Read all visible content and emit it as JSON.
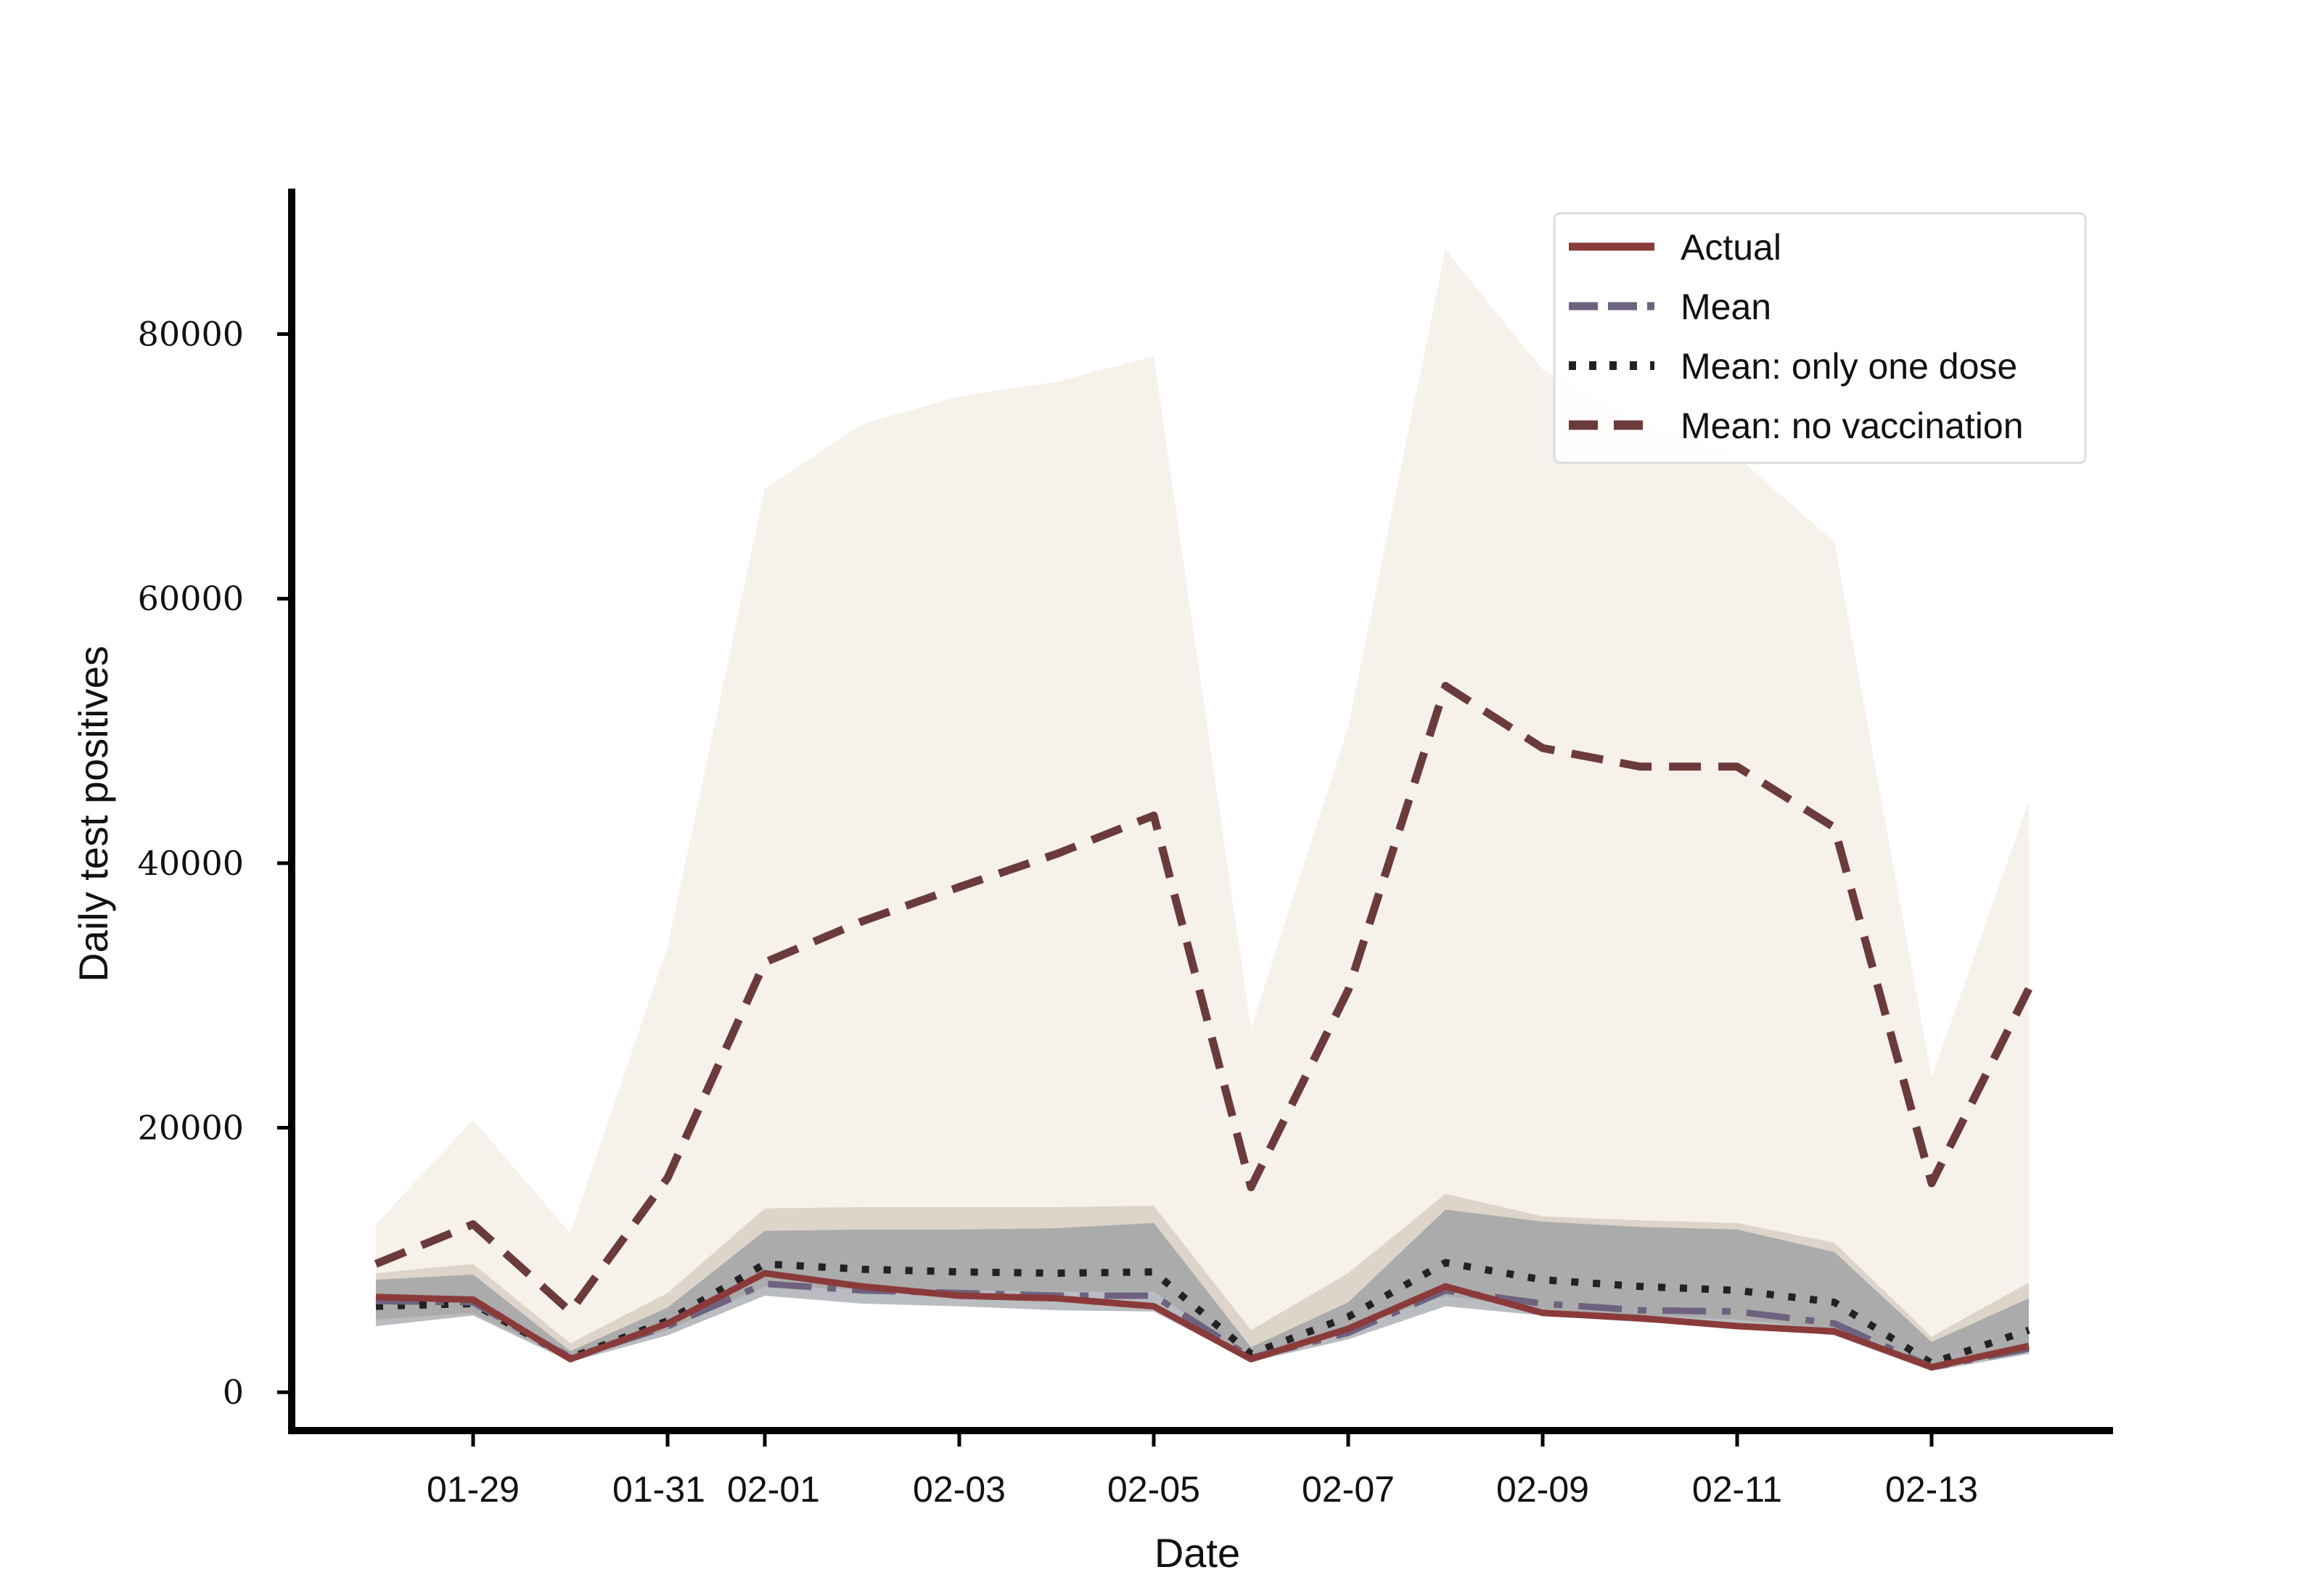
{
  "chart_data": {
    "type": "line",
    "xlabel": "Date",
    "ylabel": "Daily test positives",
    "ylim": [
      -2900,
      91000
    ],
    "y_ticks": [
      0,
      20000,
      40000,
      60000,
      80000
    ],
    "x_tick_labels": [
      "01-29",
      "01-31",
      "02-01",
      "02-03",
      "02-05",
      "02-07",
      "02-09",
      "02-11",
      "02-13"
    ],
    "x": [
      "01-28",
      "01-29",
      "01-30",
      "01-31",
      "02-01",
      "02-02",
      "02-03",
      "02-04",
      "02-05",
      "02-06",
      "02-07",
      "02-08",
      "02-09",
      "02-10",
      "02-11",
      "02-12",
      "02-13",
      "02-14"
    ],
    "legend_position": "top-right",
    "series": [
      {
        "name": "Actual",
        "style": "solid",
        "color": "#8b3a3a",
        "values": [
          7200,
          7000,
          2500,
          5200,
          9000,
          8000,
          7300,
          7100,
          6500,
          2500,
          4800,
          8000,
          6000,
          5600,
          5000,
          4600,
          1900,
          3500
        ]
      },
      {
        "name": "Mean",
        "style": "dashdot",
        "color": "#6e6280",
        "values": [
          6900,
          6800,
          2600,
          5000,
          8200,
          7700,
          7500,
          7300,
          7300,
          2600,
          4500,
          7700,
          6700,
          6200,
          6100,
          5200,
          1900,
          3300
        ],
        "band_lower": [
          5000,
          5800,
          2300,
          4300,
          7300,
          6700,
          6500,
          6200,
          6100,
          2300,
          4000,
          6500,
          5800,
          5300,
          5000,
          4300,
          1600,
          2900
        ],
        "band_upper": [
          8500,
          8900,
          3100,
          6400,
          12200,
          12300,
          12300,
          12400,
          12800,
          3400,
          6800,
          13800,
          12900,
          12500,
          12300,
          10600,
          3800,
          7100
        ],
        "band_color": "#8a8f96"
      },
      {
        "name": "Mean: only one dose",
        "style": "dotted",
        "color": "#222222",
        "values": [
          6500,
          6700,
          2600,
          5400,
          9700,
          9300,
          9100,
          9000,
          9100,
          2900,
          5700,
          9800,
          8500,
          8000,
          7700,
          6800,
          2200,
          4700
        ],
        "band_lower": [
          5500,
          6000,
          2400,
          4700,
          8000,
          7800,
          7700,
          7600,
          7600,
          2500,
          4800,
          7300,
          6300,
          5800,
          5500,
          4800,
          1800,
          3400
        ],
        "band_upper": [
          9000,
          9700,
          3700,
          7500,
          13900,
          14000,
          14000,
          14000,
          14100,
          4700,
          9000,
          15000,
          13300,
          13000,
          12800,
          11300,
          4200,
          8300
        ],
        "band_color": "#d9cfc4"
      },
      {
        "name": "Mean: no vaccination",
        "style": "dashed",
        "color": "#6b3a3a",
        "values": [
          9700,
          12700,
          6100,
          16200,
          32500,
          35600,
          38200,
          40700,
          43600,
          15500,
          30400,
          53400,
          48700,
          47300,
          47300,
          42700,
          15800,
          30500
        ],
        "band_lower": [
          9000,
          9700,
          3700,
          7500,
          13900,
          14000,
          14000,
          14000,
          14100,
          4700,
          9000,
          15000,
          13300,
          13000,
          12800,
          11300,
          4200,
          8300
        ],
        "band_upper": [
          12700,
          20600,
          12000,
          33700,
          68300,
          73200,
          75300,
          76400,
          78300,
          27500,
          50300,
          86400,
          77300,
          73200,
          70700,
          64300,
          23800,
          44700
        ],
        "band_color": "#f5efe8"
      }
    ]
  }
}
